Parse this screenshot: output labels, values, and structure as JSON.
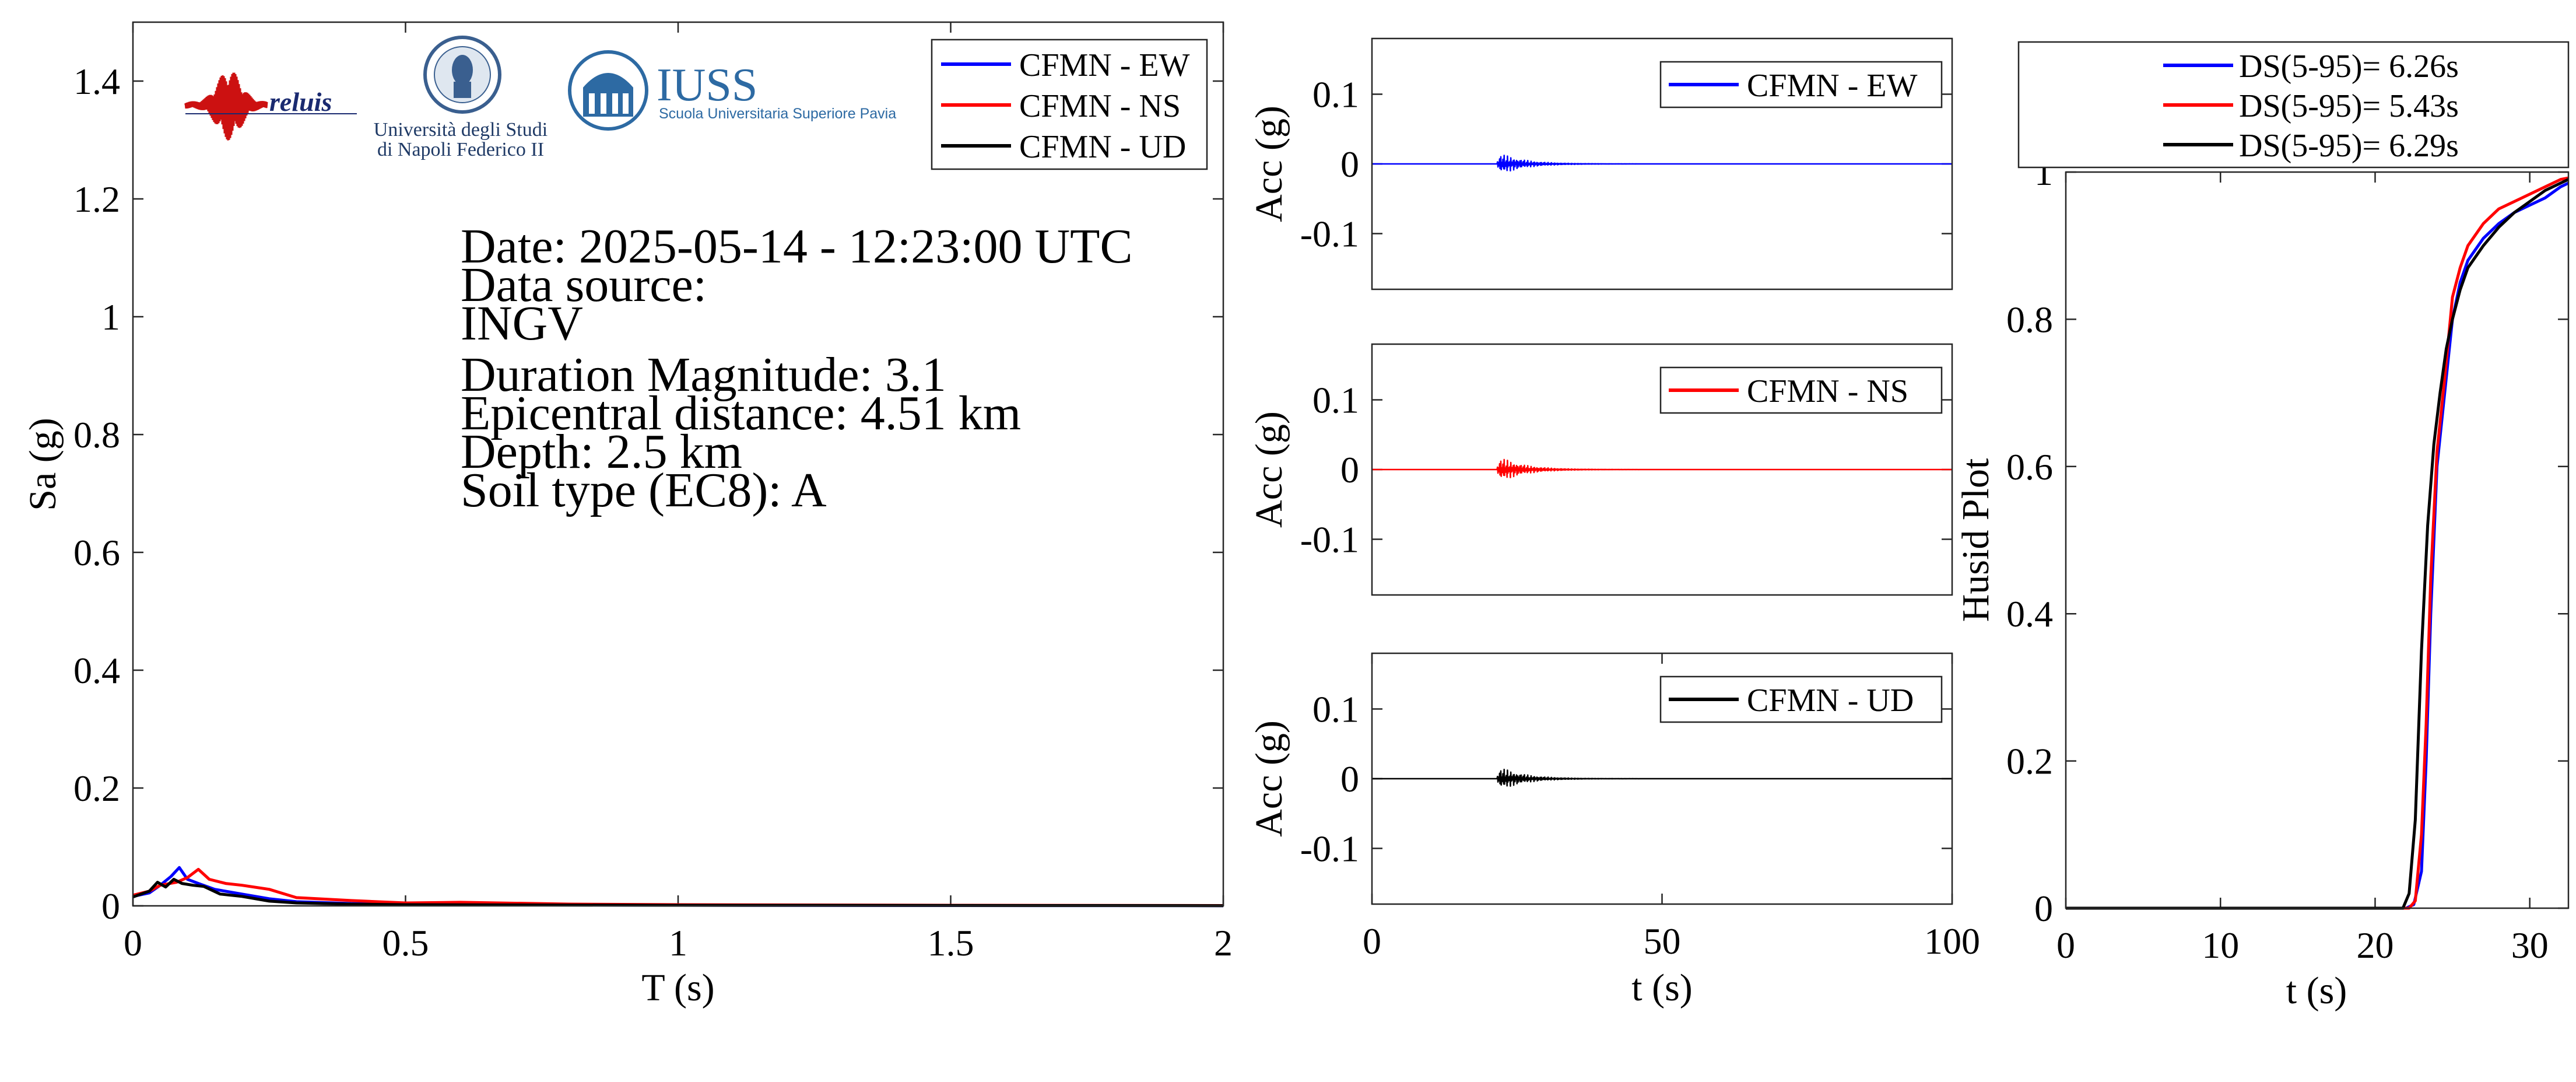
{
  "colors": {
    "ew": "#0000ff",
    "ns": "#ff0000",
    "ud": "#000000"
  },
  "logos": {
    "reluis": "reluis",
    "unina_line1": "Università degli Studi",
    "unina_line2": "di Napoli Federico II",
    "iuss_title": "IUSS",
    "iuss_subtitle": "Scuola Universitaria Superiore Pavia"
  },
  "info": {
    "date": "Date: 2025-05-14 - 12:23:00 UTC",
    "source_label": "Data source:",
    "source": "INGV",
    "magnitude": "Duration Magnitude: 3.1",
    "distance": "Epicentral distance: 4.51 km",
    "depth": "Depth: 2.5 km",
    "soil": "Soil type (EC8): A"
  },
  "chart_data": [
    {
      "type": "line",
      "xlabel": "T (s)",
      "ylabel": "Sa (g)",
      "xlim": [
        0,
        2
      ],
      "ylim": [
        0,
        1.5
      ],
      "xticks": [
        0,
        0.5,
        1,
        1.5,
        2
      ],
      "yticks": [
        0,
        0.2,
        0.4,
        0.6,
        0.8,
        1,
        1.2,
        1.4
      ],
      "legend_position": "top-right",
      "series": [
        {
          "name": "CFMN - EW",
          "color": "#0000ff",
          "x": [
            0,
            0.03,
            0.05,
            0.07,
            0.085,
            0.1,
            0.12,
            0.15,
            0.2,
            0.25,
            0.3,
            0.4,
            0.5,
            0.7,
            1.0,
            1.5,
            2.0
          ],
          "y": [
            0.016,
            0.022,
            0.035,
            0.05,
            0.065,
            0.045,
            0.038,
            0.028,
            0.02,
            0.012,
            0.007,
            0.004,
            0.003,
            0.002,
            0.001,
            0.0005,
            0.0003
          ]
        },
        {
          "name": "CFMN - NS",
          "color": "#ff0000",
          "x": [
            0,
            0.03,
            0.05,
            0.08,
            0.1,
            0.12,
            0.14,
            0.17,
            0.2,
            0.25,
            0.3,
            0.4,
            0.5,
            0.6,
            0.8,
            1.0,
            1.5,
            2.0
          ],
          "y": [
            0.018,
            0.025,
            0.035,
            0.04,
            0.048,
            0.062,
            0.045,
            0.038,
            0.035,
            0.028,
            0.014,
            0.009,
            0.005,
            0.006,
            0.003,
            0.002,
            0.001,
            0.0005
          ]
        },
        {
          "name": "CFMN - UD",
          "color": "#000000",
          "x": [
            0,
            0.03,
            0.045,
            0.06,
            0.075,
            0.09,
            0.11,
            0.13,
            0.16,
            0.2,
            0.25,
            0.3,
            0.4,
            0.5,
            1.0,
            2.0
          ],
          "y": [
            0.015,
            0.025,
            0.04,
            0.032,
            0.045,
            0.038,
            0.035,
            0.033,
            0.02,
            0.016,
            0.008,
            0.005,
            0.003,
            0.002,
            0.001,
            0.0003
          ]
        }
      ]
    },
    {
      "type": "line",
      "ylabel": "Acc (g)",
      "xlim": [
        0,
        100
      ],
      "ylim": [
        -0.18,
        0.18
      ],
      "yticks": [
        -0.1,
        0,
        0.1
      ],
      "legend_position": "top-right",
      "series": [
        {
          "name": "CFMN - EW",
          "color": "#0000ff",
          "peak": 0.012,
          "onset": 21.5,
          "decay": 4
        }
      ]
    },
    {
      "type": "line",
      "ylabel": "Acc (g)",
      "xlim": [
        0,
        100
      ],
      "ylim": [
        -0.18,
        0.18
      ],
      "yticks": [
        -0.1,
        0,
        0.1
      ],
      "legend_position": "top-right",
      "series": [
        {
          "name": "CFMN - NS",
          "color": "#ff0000",
          "peak": 0.014,
          "onset": 21.5,
          "decay": 4
        }
      ]
    },
    {
      "type": "line",
      "xlabel": "t (s)",
      "ylabel": "Acc (g)",
      "xlim": [
        0,
        100
      ],
      "ylim": [
        -0.18,
        0.18
      ],
      "xticks": [
        0,
        50,
        100
      ],
      "yticks": [
        -0.1,
        0,
        0.1
      ],
      "legend_position": "top-right",
      "series": [
        {
          "name": "CFMN - UD",
          "color": "#000000",
          "peak": 0.013,
          "onset": 21.5,
          "decay": 4
        }
      ]
    },
    {
      "type": "line",
      "xlabel": "t (s)",
      "ylabel": "Husid Plot",
      "xlim": [
        0,
        32.5
      ],
      "ylim": [
        0,
        1
      ],
      "xticks": [
        0,
        10,
        20,
        30
      ],
      "yticks": [
        0,
        0.2,
        0.4,
        0.6,
        0.8,
        1
      ],
      "legend_position": "top",
      "series": [
        {
          "name": "DS(5-95)= 6.26s",
          "color": "#0000ff",
          "x": [
            0,
            21,
            22,
            22.5,
            23,
            23.3,
            23.6,
            24,
            24.5,
            25,
            25.5,
            26,
            27,
            28,
            29,
            30,
            31,
            32,
            32.5
          ],
          "y": [
            0,
            0,
            0,
            0.005,
            0.05,
            0.2,
            0.4,
            0.6,
            0.7,
            0.8,
            0.85,
            0.88,
            0.91,
            0.93,
            0.945,
            0.955,
            0.965,
            0.98,
            0.985
          ]
        },
        {
          "name": "DS(5-95)= 5.43s",
          "color": "#ff0000",
          "x": [
            0,
            21,
            22.2,
            22.6,
            23,
            23.3,
            23.6,
            24,
            24.5,
            25,
            25.5,
            26,
            27,
            28,
            29,
            30,
            31,
            32,
            32.5
          ],
          "y": [
            0,
            0,
            0,
            0.01,
            0.1,
            0.25,
            0.45,
            0.62,
            0.72,
            0.83,
            0.87,
            0.9,
            0.93,
            0.95,
            0.96,
            0.97,
            0.98,
            0.99,
            0.992
          ]
        },
        {
          "name": "DS(5-95)= 6.29s",
          "color": "#000000",
          "x": [
            0,
            21,
            21.8,
            22.2,
            22.6,
            23,
            23.4,
            23.8,
            24.2,
            24.6,
            25,
            25.5,
            26,
            27,
            28,
            29,
            30,
            31,
            32,
            32.5
          ],
          "y": [
            0,
            0,
            0,
            0.02,
            0.12,
            0.35,
            0.52,
            0.63,
            0.7,
            0.76,
            0.8,
            0.84,
            0.87,
            0.9,
            0.925,
            0.945,
            0.96,
            0.975,
            0.985,
            0.99
          ]
        }
      ]
    }
  ]
}
